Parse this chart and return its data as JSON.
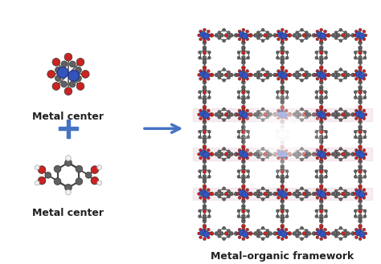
{
  "background_color": "#ffffff",
  "metal_center_label": "Metal center",
  "linker_label": "Metal center",
  "mof_label": "Metal–organic framework",
  "plus_color": "#4472c4",
  "arrow_color": "#4472c4",
  "label_fontsize": 9,
  "label_color": "#222222",
  "atom_grey": "#606060",
  "atom_red": "#cc2222",
  "atom_blue": "#3355bb",
  "atom_white": "#f0f0f0",
  "atom_pink": "#cc88aa"
}
